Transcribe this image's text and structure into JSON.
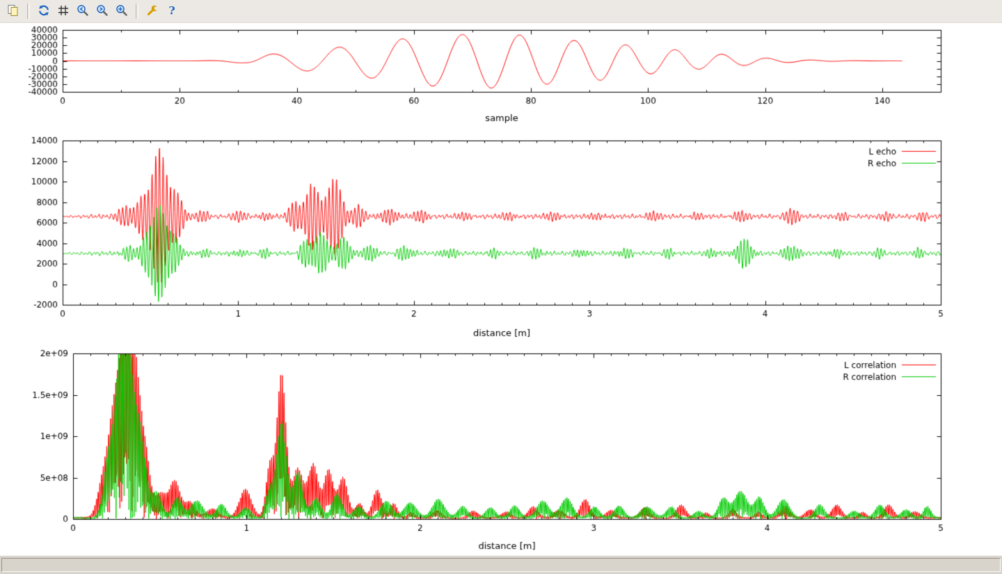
{
  "toolbar": {
    "buttons": [
      {
        "id": "copy-plot",
        "icon": "copy-icon"
      },
      {
        "id": "replot",
        "icon": "refresh-icon"
      },
      {
        "id": "toggle-grid",
        "icon": "grid-icon"
      },
      {
        "id": "zoom-previous",
        "icon": "zoom-previous-icon"
      },
      {
        "id": "zoom-next",
        "icon": "zoom-next-icon"
      },
      {
        "id": "autoscale",
        "icon": "autoscale-icon"
      },
      {
        "id": "configure",
        "icon": "wrench-icon"
      },
      {
        "id": "help",
        "icon": "help-icon"
      }
    ]
  },
  "statusbar": {
    "text": ""
  },
  "colors": {
    "series_red": "#ff0000",
    "series_green": "#00cc00",
    "axis": "#000000",
    "window_bg": "#ece9e5"
  },
  "chart_data": [
    {
      "type": "line",
      "title": "",
      "xlabel": "sample",
      "xlim": [
        0,
        150
      ],
      "xticks": {
        "values": [
          0,
          20,
          40,
          60,
          80,
          100,
          120,
          140
        ],
        "labels": [
          "0",
          "20",
          "40",
          "60",
          "80",
          "100",
          "120",
          "140"
        ]
      },
      "x_minor_step": 10,
      "ylim": [
        -40000,
        40000
      ],
      "yticks": {
        "values": [
          -40000,
          -30000,
          -20000,
          -10000,
          0,
          10000,
          20000,
          30000,
          40000
        ],
        "labels": [
          "-40000",
          "-30000",
          "-20000",
          "-10000",
          "0",
          "10000",
          "20000",
          "30000",
          "40000"
        ]
      },
      "legend": false,
      "grid": false,
      "series": [
        {
          "name": "",
          "color": "#ff0000",
          "kind": "chirp",
          "xend": 143.5,
          "envelope": [
            [
              0,
              0
            ],
            [
              23,
              0
            ],
            [
              27,
              900
            ],
            [
              31,
              3000
            ],
            [
              35,
              8200
            ],
            [
              41,
              12500
            ],
            [
              47,
              17500
            ],
            [
              52,
              21500
            ],
            [
              58,
              28500
            ],
            [
              63,
              32500
            ],
            [
              68,
              34000
            ],
            [
              73,
              35200
            ],
            [
              78,
              33500
            ],
            [
              83,
              30000
            ],
            [
              87,
              26500
            ],
            [
              92,
              25000
            ],
            [
              95,
              22000
            ],
            [
              99,
              17500
            ],
            [
              104,
              15000
            ],
            [
              108,
              11000
            ],
            [
              112,
              9000
            ],
            [
              116,
              6200
            ],
            [
              120,
              3600
            ],
            [
              124,
              2100
            ],
            [
              128,
              1100
            ],
            [
              132,
              500
            ],
            [
              136,
              220
            ],
            [
              140,
              90
            ],
            [
              143.5,
              0
            ]
          ],
          "period_at_ref": 11.7,
          "period_ref_x": 35,
          "period_slope": -0.05,
          "period_min": 7.6,
          "period_max": 12.6,
          "align_peak_x": 68.2
        }
      ]
    },
    {
      "type": "line",
      "title": "",
      "xlabel": "distance [m]",
      "xlim": [
        0,
        5
      ],
      "xticks": {
        "values": [
          0,
          1,
          2,
          3,
          4,
          5
        ],
        "labels": [
          "0",
          "1",
          "2",
          "3",
          "4",
          "5"
        ]
      },
      "x_minor_step": 0.1,
      "ylim": [
        -2000,
        14000
      ],
      "yticks": {
        "values": [
          -2000,
          0,
          2000,
          4000,
          6000,
          8000,
          10000,
          12000,
          14000
        ],
        "labels": [
          "-2000",
          "0",
          "2000",
          "4000",
          "6000",
          "8000",
          "10000",
          "12000",
          "14000"
        ]
      },
      "legend": true,
      "legend_position": "top-right",
      "grid": false,
      "series": [
        {
          "name": "L echo",
          "color": "#ff0000",
          "kind": "echo",
          "baseline": 6600,
          "carrier_period": 0.021,
          "noise_amp": 260,
          "noise_phase": 0,
          "bursts": [
            [
              0.36,
              0.05,
              1000
            ],
            [
              0.45,
              0.04,
              1900
            ],
            [
              0.55,
              0.055,
              6600
            ],
            [
              0.65,
              0.045,
              2400
            ],
            [
              0.8,
              0.05,
              450
            ],
            [
              1.0,
              0.05,
              400
            ],
            [
              1.15,
              0.04,
              500
            ],
            [
              1.32,
              0.04,
              1400
            ],
            [
              1.42,
              0.05,
              3300
            ],
            [
              1.55,
              0.055,
              3700
            ],
            [
              1.68,
              0.04,
              1100
            ],
            [
              1.86,
              0.05,
              900
            ],
            [
              2.05,
              0.05,
              600
            ],
            [
              2.3,
              0.05,
              400
            ],
            [
              2.55,
              0.05,
              450
            ],
            [
              2.8,
              0.05,
              520
            ],
            [
              3.05,
              0.05,
              420
            ],
            [
              3.35,
              0.05,
              500
            ],
            [
              3.6,
              0.04,
              380
            ],
            [
              3.85,
              0.05,
              520
            ],
            [
              4.15,
              0.05,
              650
            ],
            [
              4.45,
              0.04,
              380
            ],
            [
              4.7,
              0.04,
              420
            ],
            [
              4.9,
              0.03,
              380
            ]
          ]
        },
        {
          "name": "R echo",
          "color": "#00cc00",
          "kind": "echo",
          "baseline": 3000,
          "carrier_period": 0.019,
          "noise_amp": 240,
          "noise_phase": 2.1,
          "bursts": [
            [
              0.37,
              0.04,
              700
            ],
            [
              0.47,
              0.04,
              1500
            ],
            [
              0.55,
              0.05,
              4900
            ],
            [
              0.64,
              0.04,
              1700
            ],
            [
              0.8,
              0.05,
              350
            ],
            [
              1.0,
              0.04,
              350
            ],
            [
              1.15,
              0.04,
              400
            ],
            [
              1.38,
              0.04,
              1100
            ],
            [
              1.47,
              0.055,
              1900
            ],
            [
              1.6,
              0.05,
              1500
            ],
            [
              1.75,
              0.04,
              900
            ],
            [
              1.95,
              0.05,
              700
            ],
            [
              2.2,
              0.05,
              480
            ],
            [
              2.45,
              0.04,
              420
            ],
            [
              2.7,
              0.05,
              480
            ],
            [
              2.95,
              0.04,
              420
            ],
            [
              3.2,
              0.05,
              450
            ],
            [
              3.45,
              0.04,
              420
            ],
            [
              3.7,
              0.04,
              450
            ],
            [
              3.88,
              0.055,
              1350
            ],
            [
              4.15,
              0.05,
              800
            ],
            [
              4.4,
              0.04,
              420
            ],
            [
              4.65,
              0.04,
              420
            ],
            [
              4.88,
              0.04,
              430
            ]
          ]
        }
      ]
    },
    {
      "type": "line",
      "title": "",
      "xlabel": "distance [m]",
      "xlim": [
        0,
        5
      ],
      "xticks": {
        "values": [
          0,
          1,
          2,
          3,
          4,
          5
        ],
        "labels": [
          "0",
          "1",
          "2",
          "3",
          "4",
          "5"
        ]
      },
      "x_minor_step": 0.1,
      "ylim": [
        0,
        2000000000.0
      ],
      "yticks": {
        "values": [
          0,
          500000000.0,
          1000000000.0,
          1500000000.0,
          2000000000.0
        ],
        "labels": [
          "0",
          "5e+08",
          "1e+09",
          "1.5e+09",
          "2e+09"
        ]
      },
      "legend": true,
      "legend_position": "top-right",
      "grid": false,
      "series": [
        {
          "name": "L correlation",
          "color": "#ff0000",
          "kind": "corr",
          "carrier_period": 0.02,
          "floor": 25000000.0,
          "mod_period": 0.29,
          "mod_phase": 0.4,
          "bursts": [
            [
              0.17,
              0.04,
              600000000.0
            ],
            [
              0.22,
              0.04,
              1400000000.0
            ],
            [
              0.28,
              0.05,
              2200000000.0
            ],
            [
              0.35,
              0.05,
              1900000000.0
            ],
            [
              0.42,
              0.04,
              900000000.0
            ],
            [
              0.5,
              0.04,
              450000000.0
            ],
            [
              0.58,
              0.05,
              500000000.0
            ],
            [
              0.68,
              0.04,
              200000000.0
            ],
            [
              0.8,
              0.05,
              180000000.0
            ],
            [
              1.0,
              0.05,
              430000000.0
            ],
            [
              1.13,
              0.03,
              800000000.0
            ],
            [
              1.2,
              0.04,
              1750000000.0
            ],
            [
              1.3,
              0.04,
              800000000.0
            ],
            [
              1.38,
              0.04,
              1050000000.0
            ],
            [
              1.47,
              0.04,
              600000000.0
            ],
            [
              1.56,
              0.04,
              550000000.0
            ],
            [
              1.65,
              0.03,
              300000000.0
            ],
            [
              1.75,
              0.04,
              360000000.0
            ],
            [
              1.85,
              0.03,
              200000000.0
            ],
            [
              1.95,
              0.03,
              120000000.0
            ],
            [
              2.1,
              0.04,
              80000000.0
            ],
            [
              2.3,
              0.04,
              100000000.0
            ],
            [
              2.5,
              0.04,
              120000000.0
            ],
            [
              2.65,
              0.04,
              130000000.0
            ],
            [
              2.8,
              0.04,
              160000000.0
            ],
            [
              2.95,
              0.04,
              220000000.0
            ],
            [
              3.1,
              0.04,
              160000000.0
            ],
            [
              3.3,
              0.04,
              140000000.0
            ],
            [
              3.5,
              0.04,
              160000000.0
            ],
            [
              3.65,
              0.03,
              100000000.0
            ],
            [
              3.8,
              0.03,
              100000000.0
            ],
            [
              3.95,
              0.03,
              120000000.0
            ],
            [
              4.1,
              0.04,
              140000000.0
            ],
            [
              4.25,
              0.04,
              170000000.0
            ],
            [
              4.4,
              0.04,
              150000000.0
            ],
            [
              4.55,
              0.03,
              120000000.0
            ],
            [
              4.7,
              0.04,
              150000000.0
            ],
            [
              4.85,
              0.04,
              130000000.0
            ]
          ]
        },
        {
          "name": "R correlation",
          "color": "#00cc00",
          "kind": "corr",
          "carrier_period": 0.019,
          "floor": 25000000.0,
          "mod_period": 0.31,
          "mod_phase": 1.7,
          "bursts": [
            [
              0.2,
              0.04,
              900000000.0
            ],
            [
              0.27,
              0.05,
              1800000000.0
            ],
            [
              0.33,
              0.05,
              1750000000.0
            ],
            [
              0.4,
              0.04,
              1100000000.0
            ],
            [
              0.48,
              0.04,
              500000000.0
            ],
            [
              0.6,
              0.04,
              250000000.0
            ],
            [
              0.72,
              0.05,
              300000000.0
            ],
            [
              0.85,
              0.04,
              200000000.0
            ],
            [
              1.0,
              0.04,
              150000000.0
            ],
            [
              1.13,
              0.03,
              500000000.0
            ],
            [
              1.2,
              0.04,
              1250000000.0
            ],
            [
              1.3,
              0.04,
              650000000.0
            ],
            [
              1.4,
              0.04,
              400000000.0
            ],
            [
              1.52,
              0.04,
              300000000.0
            ],
            [
              1.65,
              0.04,
              200000000.0
            ],
            [
              1.8,
              0.05,
              220000000.0
            ],
            [
              1.95,
              0.05,
              250000000.0
            ],
            [
              2.1,
              0.05,
              260000000.0
            ],
            [
              2.25,
              0.04,
              180000000.0
            ],
            [
              2.4,
              0.04,
              150000000.0
            ],
            [
              2.55,
              0.04,
              180000000.0
            ],
            [
              2.7,
              0.05,
              260000000.0
            ],
            [
              2.85,
              0.05,
              280000000.0
            ],
            [
              3.0,
              0.04,
              180000000.0
            ],
            [
              3.15,
              0.04,
              160000000.0
            ],
            [
              3.3,
              0.05,
              190000000.0
            ],
            [
              3.45,
              0.04,
              140000000.0
            ],
            [
              3.6,
              0.04,
              120000000.0
            ],
            [
              3.75,
              0.04,
              250000000.0
            ],
            [
              3.85,
              0.05,
              530000000.0
            ],
            [
              3.95,
              0.04,
              300000000.0
            ],
            [
              4.1,
              0.05,
              270000000.0
            ],
            [
              4.3,
              0.04,
              160000000.0
            ],
            [
              4.5,
              0.04,
              140000000.0
            ],
            [
              4.65,
              0.04,
              150000000.0
            ],
            [
              4.8,
              0.04,
              170000000.0
            ],
            [
              4.92,
              0.03,
              140000000.0
            ]
          ]
        }
      ]
    }
  ]
}
